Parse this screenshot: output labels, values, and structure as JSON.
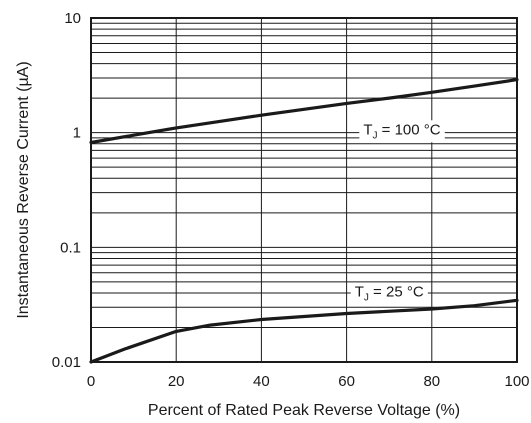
{
  "chart_data": {
    "type": "line",
    "xlabel": "Percent of Rated Peak Reverse Voltage (%)",
    "ylabel": "Instantaneous Reverse Current (µA)",
    "xlim": [
      0,
      100
    ],
    "ylim": [
      0.01,
      10
    ],
    "yscale": "log",
    "grid": true,
    "x_ticks": [
      0,
      20,
      40,
      60,
      80,
      100
    ],
    "x_tick_labels": [
      "0",
      "20",
      "40",
      "60",
      "80",
      "100"
    ],
    "y_ticks": [
      0.01,
      0.1,
      1,
      10
    ],
    "y_tick_labels": [
      "0.01",
      "0.1",
      "1",
      "10"
    ],
    "series": [
      {
        "name": "T_J = 100 °C",
        "label_main": "T",
        "label_sub": "J",
        "label_rest": " = 100 °C",
        "x": [
          0,
          10,
          20,
          30,
          40,
          50,
          60,
          70,
          80,
          90,
          100
        ],
        "y": [
          0.82,
          0.95,
          1.1,
          1.25,
          1.42,
          1.6,
          1.8,
          2.0,
          2.25,
          2.55,
          2.9
        ]
      },
      {
        "name": "T_J = 25 °C",
        "label_main": "T",
        "label_sub": "J",
        "label_rest": " = 25 °C",
        "x": [
          0,
          8,
          20,
          28,
          40,
          60,
          80,
          90,
          100
        ],
        "y": [
          0.01,
          0.013,
          0.0185,
          0.021,
          0.0235,
          0.0265,
          0.029,
          0.031,
          0.0345
        ]
      }
    ]
  }
}
